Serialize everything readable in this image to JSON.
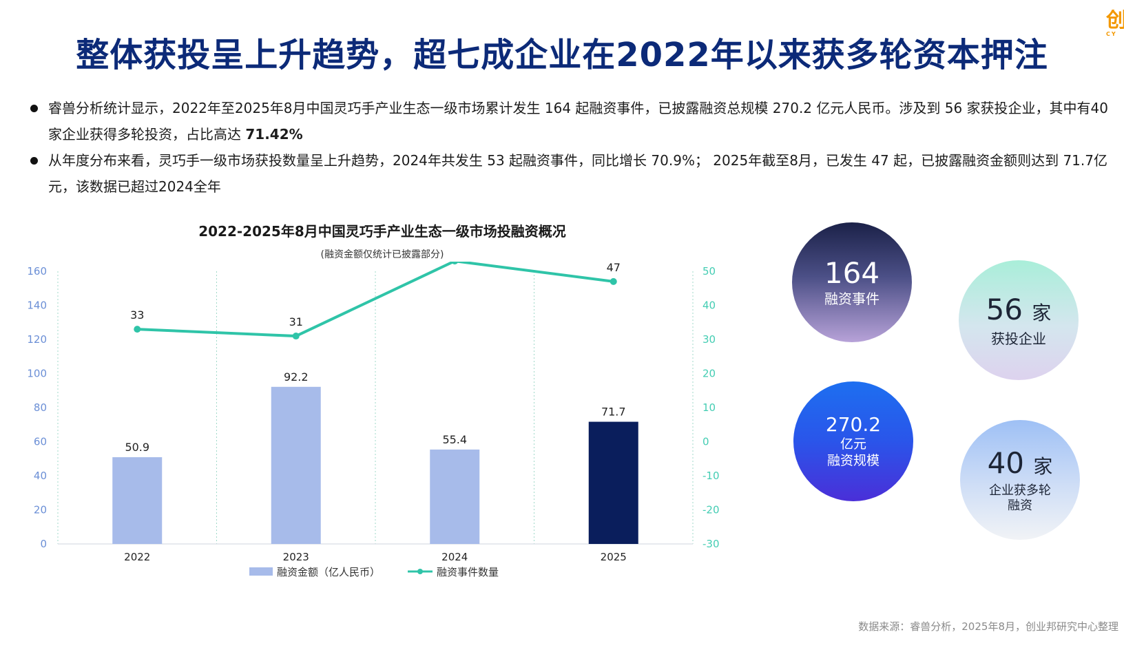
{
  "logo": {
    "glyph": "创",
    "sub": "CY"
  },
  "title": "整体获投呈上升趋势，超七成企业在2022年以来获多轮资本押注",
  "bullets": [
    {
      "text": "睿兽分析统计显示，2022年至2025年8月中国灵巧手产业生态一级市场累计发生 164 起融资事件，已披露融资总规模 270.2 亿元人民币。涉及到 56 家获投企业，其中有40 家企业获得多轮投资，占比高达 ",
      "bold": "71.42%"
    },
    {
      "text": "从年度分布来看，灵巧手一级市场获投数量呈上升趋势，2024年共发生 53 起融资事件，同比增长 70.9%； 2025年截至8月，已发生 47 起，已披露融资金额则达到 71.7亿元，该数据已超过2024全年",
      "bold": ""
    }
  ],
  "chart_data": {
    "type": "bar",
    "title": "2022-2025年8月中国灵巧手产业生态一级市场投融资概况",
    "subtitle": "(融资金额仅统计已披露部分)",
    "categories": [
      "2022",
      "2023",
      "2024",
      "2025"
    ],
    "series": [
      {
        "name": "融资金额（亿人民币）",
        "type": "bar",
        "axis": "left",
        "values": [
          50.9,
          92.2,
          55.4,
          71.7
        ],
        "colors": [
          "#a7bbea",
          "#a7bbea",
          "#a7bbea",
          "#0a1e5c"
        ]
      },
      {
        "name": "融资事件数量",
        "type": "line",
        "axis": "right",
        "values": [
          33,
          31,
          53,
          47
        ],
        "color": "#2fc4a8"
      }
    ],
    "y_left": {
      "ticks": [
        0,
        20,
        40,
        60,
        80,
        100,
        120,
        140,
        160
      ],
      "range": [
        0,
        160
      ]
    },
    "y_right": {
      "ticks": [
        -30,
        -20,
        -10,
        0,
        10,
        20,
        30,
        40,
        50
      ],
      "range": [
        -30,
        50
      ]
    },
    "grid": "vertical-dotted",
    "legend_position": "bottom"
  },
  "bubbles": [
    {
      "value": "164",
      "label": "融资事件"
    },
    {
      "value": "56",
      "unit": "家",
      "label": "获投企业"
    },
    {
      "value": "270.2",
      "label1": "亿元",
      "label2": "融资规模"
    },
    {
      "value": "40",
      "unit": "家",
      "label1": "企业获多轮",
      "label2": "融资"
    }
  ],
  "source": "数据来源：睿兽分析，2025年8月，创业邦研究中心整理"
}
